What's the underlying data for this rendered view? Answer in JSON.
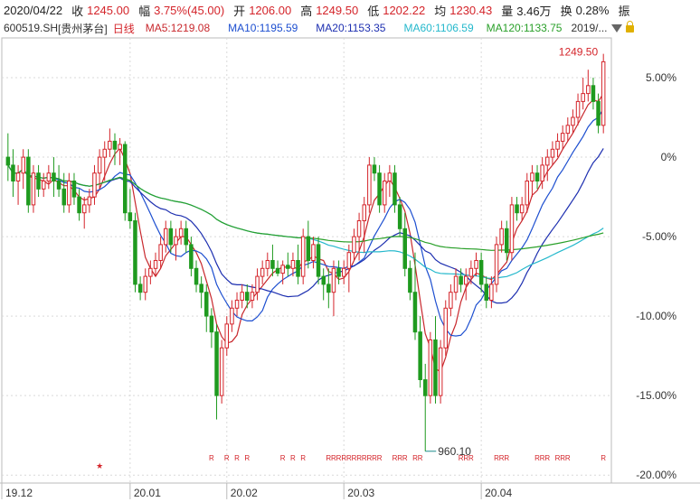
{
  "header": {
    "date": "2020/04/22",
    "close_label": "收",
    "close_value": "1245.00",
    "change_label": "幅",
    "change_value": "3.75%(45.00)",
    "open_label": "开",
    "open_value": "1206.00",
    "high_label": "高",
    "high_value": "1249.50",
    "low_label": "低",
    "low_value": "1202.22",
    "avg_label": "均",
    "avg_value": "1230.43",
    "volume_label": "量",
    "volume_value": "3.46万",
    "turnover_label": "换",
    "turnover_value": "0.28%",
    "amplitude_label": "振"
  },
  "indicators": {
    "symbol": "600519.SH",
    "name": "[贵州茅台]",
    "period": "日线",
    "ma5": "MA5:1219.08",
    "ma10": "MA10:1195.59",
    "ma20": "MA20:1153.35",
    "ma60": "MA60:1106.59",
    "ma120": "MA120:1133.75",
    "range_selector": "2019/..."
  },
  "colors": {
    "up": "#d4242a",
    "down": "#1f9a1f",
    "ma5": "#c8282d",
    "ma10": "#1d4fd0",
    "ma20": "#1d2fb0",
    "ma60": "#24b8cc",
    "ma120": "#2aa02a",
    "grid": "#d9d9d9"
  },
  "chart_data": {
    "type": "candlestick",
    "y_axis_unit": "percent change",
    "ylim": [
      -20.5,
      7.5
    ],
    "y_ticks": [
      "5.00%",
      "0%",
      "-5.00%",
      "-10.00%",
      "-15.00%",
      "-20.00%"
    ],
    "y_tick_values": [
      5,
      0,
      -5,
      -10,
      -15,
      -20
    ],
    "x_ticks": [
      "19.12",
      "20.01",
      "20.02",
      "20.03",
      "20.04"
    ],
    "x_tick_index": [
      0,
      24,
      43,
      66,
      93
    ],
    "annotations": {
      "high_label": "1249.50",
      "low_label": "960.10"
    },
    "candles": [
      [
        0.0,
        1.5,
        -1.5,
        -0.5
      ],
      [
        -0.5,
        0.5,
        -2.5,
        -1.5
      ],
      [
        -1.5,
        -0.5,
        -3.0,
        -1.0
      ],
      [
        -1.0,
        0.5,
        -2.0,
        0.0
      ],
      [
        0.0,
        0.5,
        -3.5,
        -3.0
      ],
      [
        -3.0,
        -0.5,
        -3.5,
        -1.0
      ],
      [
        -1.0,
        -0.5,
        -2.5,
        -2.0
      ],
      [
        -2.0,
        -1.0,
        -2.5,
        -1.5
      ],
      [
        -1.5,
        -0.5,
        -2.0,
        -1.0
      ],
      [
        -1.0,
        0.0,
        -2.5,
        -1.5
      ],
      [
        -1.5,
        -0.5,
        -2.5,
        -2.0
      ],
      [
        -2.0,
        -1.0,
        -3.5,
        -3.0
      ],
      [
        -3.0,
        -1.0,
        -3.5,
        -1.5
      ],
      [
        -1.5,
        -1.0,
        -3.0,
        -2.5
      ],
      [
        -2.5,
        -2.0,
        -4.0,
        -3.5
      ],
      [
        -3.5,
        -2.5,
        -4.5,
        -3.0
      ],
      [
        -3.0,
        -2.0,
        -3.5,
        -2.5
      ],
      [
        -2.5,
        -0.5,
        -3.0,
        -1.0
      ],
      [
        -1.0,
        0.5,
        -2.0,
        0.0
      ],
      [
        0.0,
        1.0,
        -1.5,
        0.5
      ],
      [
        0.5,
        1.8,
        0.0,
        1.0
      ],
      [
        1.0,
        1.5,
        -0.5,
        0.5
      ],
      [
        0.5,
        1.2,
        -0.5,
        0.8
      ],
      [
        0.8,
        1.0,
        -4.0,
        -3.5
      ],
      [
        -3.5,
        -2.0,
        -4.5,
        -4.0
      ],
      [
        -4.0,
        -3.5,
        -8.5,
        -8.0
      ],
      [
        -8.0,
        -7.5,
        -9.0,
        -8.5
      ],
      [
        -8.5,
        -7.0,
        -9.0,
        -7.5
      ],
      [
        -7.5,
        -6.5,
        -8.0,
        -7.0
      ],
      [
        -7.0,
        -6.0,
        -7.5,
        -6.5
      ],
      [
        -6.5,
        -5.0,
        -7.0,
        -5.5
      ],
      [
        -5.5,
        -4.0,
        -6.0,
        -4.5
      ],
      [
        -4.5,
        -4.0,
        -6.0,
        -5.5
      ],
      [
        -5.5,
        -4.5,
        -6.5,
        -5.0
      ],
      [
        -5.0,
        -4.0,
        -5.5,
        -4.5
      ],
      [
        -4.5,
        -4.0,
        -6.0,
        -5.5
      ],
      [
        -5.5,
        -5.0,
        -7.5,
        -7.0
      ],
      [
        -7.0,
        -6.5,
        -8.5,
        -8.0
      ],
      [
        -8.0,
        -7.5,
        -9.5,
        -8.5
      ],
      [
        -8.5,
        -8.0,
        -11.0,
        -10.0
      ],
      [
        -10.0,
        -9.5,
        -12.0,
        -11.0
      ],
      [
        -11.0,
        -10.5,
        -16.5,
        -15.0
      ],
      [
        -15.0,
        -11.5,
        -15.5,
        -12.0
      ],
      [
        -12.0,
        -10.0,
        -12.5,
        -10.5
      ],
      [
        -10.5,
        -9.0,
        -11.0,
        -9.5
      ],
      [
        -9.5,
        -8.5,
        -10.0,
        -9.0
      ],
      [
        -9.0,
        -8.0,
        -9.5,
        -8.5
      ],
      [
        -8.5,
        -8.0,
        -9.5,
        -9.0
      ],
      [
        -9.0,
        -8.0,
        -9.5,
        -8.5
      ],
      [
        -8.5,
        -7.0,
        -9.0,
        -7.5
      ],
      [
        -7.5,
        -6.5,
        -8.0,
        -7.0
      ],
      [
        -7.0,
        -6.0,
        -7.5,
        -6.5
      ],
      [
        -6.5,
        -5.5,
        -7.5,
        -7.0
      ],
      [
        -7.0,
        -6.5,
        -7.5,
        -7.3
      ],
      [
        -7.3,
        -6.5,
        -8.0,
        -6.8
      ],
      [
        -6.8,
        -6.0,
        -7.5,
        -7.0
      ],
      [
        -7.0,
        -6.0,
        -7.5,
        -6.5
      ],
      [
        -6.5,
        -5.5,
        -8.0,
        -7.5
      ],
      [
        -7.5,
        -4.5,
        -8.0,
        -5.0
      ],
      [
        -5.0,
        -4.0,
        -7.0,
        -6.5
      ],
      [
        -6.5,
        -5.0,
        -7.0,
        -5.5
      ],
      [
        -5.5,
        -5.0,
        -8.0,
        -7.5
      ],
      [
        -7.5,
        -7.0,
        -9.0,
        -8.0
      ],
      [
        -8.0,
        -7.0,
        -9.5,
        -8.5
      ],
      [
        -8.5,
        -6.5,
        -10.0,
        -7.0
      ],
      [
        -7.0,
        -6.5,
        -8.0,
        -7.5
      ],
      [
        -7.5,
        -6.5,
        -8.0,
        -7.0
      ],
      [
        -7.0,
        -5.5,
        -8.5,
        -6.0
      ],
      [
        -6.0,
        -4.5,
        -6.5,
        -5.0
      ],
      [
        -5.0,
        -3.5,
        -6.5,
        -4.0
      ],
      [
        -4.0,
        -2.5,
        -6.0,
        -3.0
      ],
      [
        -3.0,
        0.0,
        -3.5,
        -0.5
      ],
      [
        -0.5,
        0.0,
        -1.5,
        -1.0
      ],
      [
        -1.0,
        -0.5,
        -3.5,
        -3.0
      ],
      [
        -3.0,
        -1.0,
        -3.5,
        -1.5
      ],
      [
        -1.5,
        -0.5,
        -2.5,
        -1.0
      ],
      [
        -1.0,
        -0.5,
        -3.5,
        -3.0
      ],
      [
        -3.0,
        -2.5,
        -5.0,
        -4.5
      ],
      [
        -4.5,
        -3.5,
        -7.5,
        -7.0
      ],
      [
        -7.0,
        -6.5,
        -9.0,
        -8.5
      ],
      [
        -8.5,
        -6.0,
        -11.5,
        -11.0
      ],
      [
        -11.0,
        -10.0,
        -14.5,
        -14.0
      ],
      [
        -14.0,
        -13.0,
        -18.5,
        -15.0
      ],
      [
        -15.0,
        -11.0,
        -15.5,
        -11.5
      ],
      [
        -11.5,
        -10.0,
        -15.5,
        -15.0
      ],
      [
        -15.0,
        -11.5,
        -15.5,
        -12.0
      ],
      [
        -12.0,
        -9.0,
        -12.5,
        -9.5
      ],
      [
        -9.5,
        -8.0,
        -10.0,
        -8.5
      ],
      [
        -8.5,
        -7.0,
        -9.0,
        -7.5
      ],
      [
        -7.5,
        -7.0,
        -8.5,
        -8.0
      ],
      [
        -8.0,
        -7.0,
        -9.0,
        -7.5
      ],
      [
        -7.5,
        -6.5,
        -8.0,
        -7.0
      ],
      [
        -7.0,
        -6.0,
        -7.5,
        -6.5
      ],
      [
        -6.5,
        -6.0,
        -8.5,
        -8.0
      ],
      [
        -8.0,
        -7.5,
        -9.5,
        -9.0
      ],
      [
        -9.0,
        -7.5,
        -9.5,
        -8.0
      ],
      [
        -8.0,
        -5.0,
        -8.5,
        -5.5
      ],
      [
        -5.5,
        -4.0,
        -6.0,
        -4.5
      ],
      [
        -4.5,
        -4.0,
        -6.5,
        -6.0
      ],
      [
        -6.0,
        -2.5,
        -6.5,
        -3.0
      ],
      [
        -3.0,
        -2.5,
        -4.0,
        -3.5
      ],
      [
        -3.5,
        -2.5,
        -4.0,
        -3.0
      ],
      [
        -3.0,
        -1.0,
        -3.5,
        -1.5
      ],
      [
        -1.5,
        -0.5,
        -2.5,
        -1.0
      ],
      [
        -1.0,
        -0.5,
        -2.0,
        -1.5
      ],
      [
        -1.5,
        0.0,
        -2.0,
        -0.5
      ],
      [
        -0.5,
        0.5,
        -1.5,
        0.0
      ],
      [
        0.0,
        1.0,
        -0.5,
        0.5
      ],
      [
        0.5,
        1.5,
        0.0,
        1.0
      ],
      [
        1.0,
        2.0,
        0.5,
        1.5
      ],
      [
        1.5,
        2.5,
        1.0,
        2.0
      ],
      [
        2.0,
        3.0,
        1.5,
        2.5
      ],
      [
        2.5,
        4.0,
        2.0,
        3.5
      ],
      [
        3.5,
        5.0,
        3.0,
        4.0
      ],
      [
        4.0,
        5.5,
        3.5,
        4.5
      ],
      [
        4.5,
        5.0,
        3.0,
        3.5
      ],
      [
        3.5,
        4.0,
        1.5,
        2.0
      ],
      [
        2.0,
        6.5,
        1.5,
        6.0
      ]
    ],
    "markers": {
      "r_indices": [
        40,
        43,
        45,
        47,
        54,
        56,
        58,
        63,
        64,
        65,
        66,
        67,
        68,
        69,
        70,
        71,
        72,
        73,
        76,
        77,
        78,
        80,
        81,
        89,
        90,
        91,
        96,
        97,
        98,
        104,
        105,
        106,
        108,
        109,
        110,
        117,
        119,
        120
      ],
      "r_label": "R",
      "star_indices": [
        18,
        120
      ],
      "star_label": "★"
    }
  }
}
